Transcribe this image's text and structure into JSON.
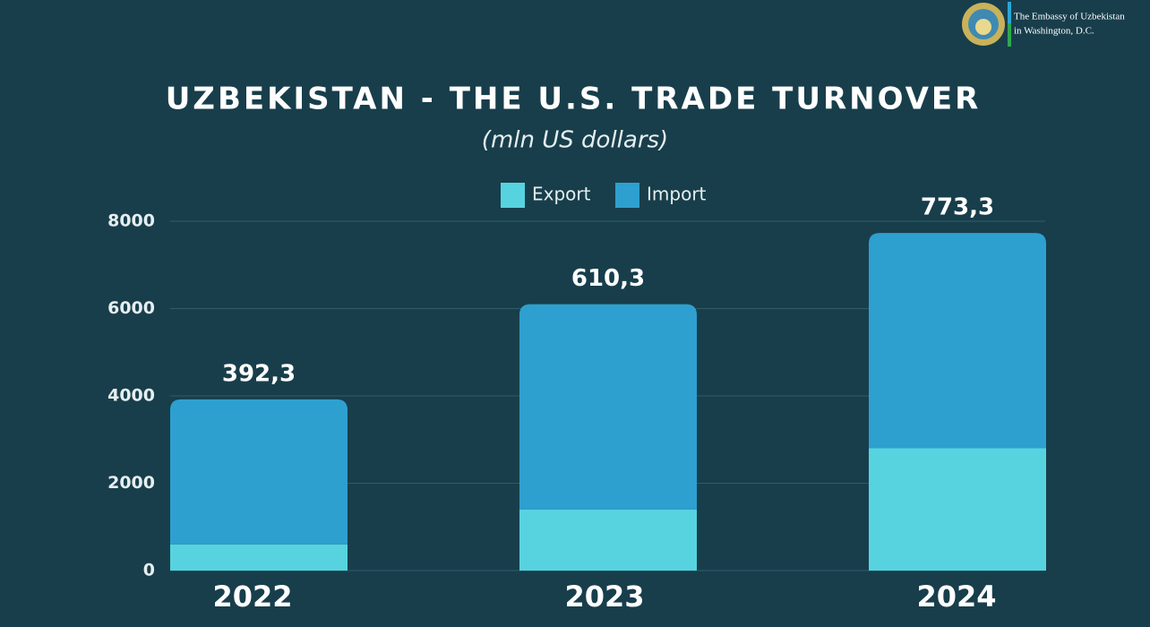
{
  "header": [
    "The Embassy of Uzbekistan",
    "in Washington, D.C."
  ],
  "chart_data": {
    "type": "stacked_bar",
    "title": "UZBEKISTAN - THE U.S. TRADE TURNOVER",
    "subtitle": "(mln US dollars)",
    "categories": [
      "2022",
      "2023",
      "2024"
    ],
    "series": [
      {
        "name": "Export",
        "color": "#57d3e0",
        "values": [
          600,
          1400,
          2800
        ]
      },
      {
        "name": "Import",
        "color": "#2ea0cf",
        "values": [
          3320,
          4700,
          4930
        ]
      }
    ],
    "annotations": [
      "392,3",
      "610,3",
      "773,3"
    ],
    "ylim": [
      0,
      8000
    ],
    "yticks": [
      0,
      2000,
      4000,
      6000,
      8000
    ],
    "grid": true
  }
}
